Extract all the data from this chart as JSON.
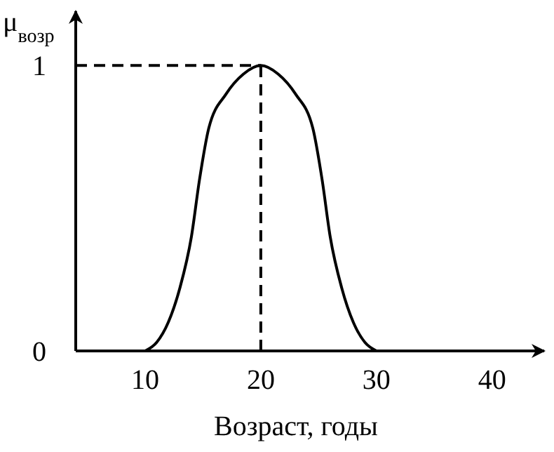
{
  "chart_data": {
    "type": "line",
    "xlabel": "Возраст, годы",
    "ylabel": "μ$_{возр}$",
    "series": [
      {
        "color": "#000000",
        "x": [
          10,
          11,
          12,
          13,
          14,
          14.7,
          15.5,
          17,
          18.5,
          20,
          21.5,
          23,
          24.5,
          25.3,
          26,
          27,
          28,
          29,
          30
        ],
        "values": [
          0,
          0.03,
          0.1,
          0.22,
          0.4,
          0.6,
          0.78,
          0.9,
          0.97,
          1,
          0.97,
          0.9,
          0.78,
          0.6,
          0.4,
          0.22,
          0.1,
          0.03,
          0
        ]
      }
    ],
    "xlim": [
      4,
      44.5
    ],
    "ylim": [
      0,
      1.19
    ],
    "xticks": [
      10,
      20,
      30,
      40
    ],
    "yticks": [
      0,
      1
    ],
    "ref_lines": [
      {
        "axis": "y",
        "value": 1,
        "line_style": "dashed"
      },
      {
        "axis": "x",
        "value": 20,
        "line_style": "dashed"
      }
    ],
    "grid": false,
    "marker": "none",
    "line_style": "solid"
  }
}
